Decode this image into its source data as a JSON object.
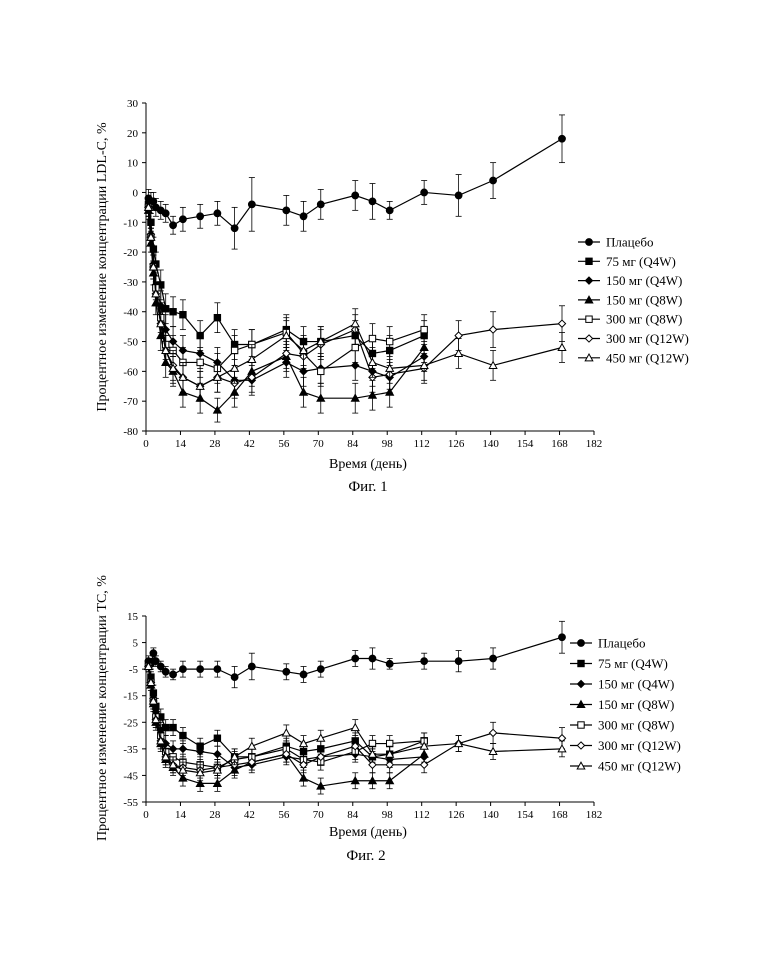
{
  "figures": [
    {
      "caption": "Фиг. 1",
      "chart_data": {
        "type": "line",
        "xlabel": "Время (день)",
        "ylabel": "Процентное изменение концентрации LDL-C, %",
        "xlim": [
          0,
          182
        ],
        "ylim": [
          -80,
          30
        ],
        "xticks": [
          0,
          14,
          28,
          42,
          56,
          70,
          84,
          98,
          112,
          126,
          140,
          154,
          168,
          182
        ],
        "yticks": [
          -80,
          -70,
          -60,
          -50,
          -40,
          -30,
          -20,
          -10,
          0,
          10,
          20,
          30
        ],
        "legend_position": "right",
        "series": [
          {
            "name": "Плацебо",
            "marker": "circle-filled",
            "x": [
              1,
              2,
              3,
              4,
              6,
              8,
              11,
              15,
              22,
              29,
              36,
              43,
              57,
              64,
              71,
              85,
              92,
              99,
              113,
              127,
              141,
              169
            ],
            "y": [
              -2,
              -3,
              -3,
              -5,
              -6,
              -7,
              -11,
              -9,
              -8,
              -7,
              -12,
              -4,
              -6,
              -8,
              -4,
              -1,
              -3,
              -6,
              0,
              -1,
              4,
              18
            ],
            "err": [
              3,
              3,
              3,
              3,
              3,
              3,
              3,
              4,
              4,
              4,
              7,
              9,
              5,
              5,
              5,
              5,
              6,
              3,
              4,
              7,
              6,
              8
            ]
          },
          {
            "name": "75 мг (Q4W)",
            "marker": "square-filled",
            "x": [
              1,
              2,
              3,
              4,
              6,
              8,
              11,
              15,
              22,
              29,
              36,
              43,
              57,
              64,
              71,
              85,
              92,
              99,
              113
            ],
            "y": [
              -4,
              -10,
              -19,
              -24,
              -31,
              -39,
              -40,
              -41,
              -48,
              -42,
              -51,
              -51,
              -46,
              -50,
              -50,
              -48,
              -54,
              -53,
              -48
            ],
            "err": [
              3,
              3,
              4,
              4,
              5,
              5,
              5,
              5,
              5,
              5,
              5,
              5,
              5,
              5,
              5,
              5,
              5,
              5,
              5
            ]
          },
          {
            "name": "150 мг (Q4W)",
            "marker": "diamond-filled",
            "x": [
              1,
              2,
              3,
              4,
              6,
              8,
              11,
              15,
              22,
              29,
              36,
              43,
              57,
              64,
              71,
              85,
              92,
              99,
              113
            ],
            "y": [
              -5,
              -14,
              -24,
              -31,
              -38,
              -46,
              -50,
              -53,
              -54,
              -57,
              -63,
              -63,
              -57,
              -60,
              -59,
              -58,
              -60,
              -62,
              -55
            ],
            "err": [
              3,
              3,
              4,
              4,
              5,
              5,
              5,
              5,
              5,
              5,
              5,
              5,
              5,
              5,
              5,
              5,
              5,
              5,
              5
            ]
          },
          {
            "name": "150 мг (Q8W)",
            "marker": "triangle-filled",
            "x": [
              1,
              2,
              3,
              4,
              6,
              8,
              11,
              15,
              22,
              29,
              36,
              43,
              57,
              64,
              71,
              85,
              92,
              99,
              113
            ],
            "y": [
              -6,
              -17,
              -27,
              -37,
              -48,
              -57,
              -60,
              -67,
              -69,
              -73,
              -67,
              -60,
              -55,
              -67,
              -69,
              -69,
              -68,
              -67,
              -52
            ],
            "err": [
              3,
              3,
              4,
              4,
              5,
              5,
              5,
              5,
              5,
              4,
              5,
              5,
              5,
              5,
              5,
              5,
              5,
              5,
              5
            ]
          },
          {
            "name": "300 мг (Q8W)",
            "marker": "square-open",
            "x": [
              1,
              2,
              3,
              4,
              6,
              8,
              11,
              15,
              22,
              29,
              36,
              43,
              57,
              64,
              71,
              85,
              92,
              99,
              113
            ],
            "y": [
              -5,
              -15,
              -25,
              -32,
              -42,
              -51,
              -53,
              -57,
              -57,
              -59,
              -53,
              -51,
              -47,
              -54,
              -60,
              -52,
              -49,
              -50,
              -46
            ],
            "err": [
              3,
              3,
              4,
              4,
              5,
              5,
              5,
              5,
              5,
              5,
              5,
              5,
              5,
              5,
              5,
              5,
              5,
              5,
              5
            ]
          },
          {
            "name": "300 мг (Q12W)",
            "marker": "diamond-open",
            "x": [
              1,
              2,
              3,
              4,
              6,
              8,
              11,
              15,
              22,
              29,
              36,
              43,
              57,
              64,
              71,
              85,
              92,
              99,
              113,
              127,
              141,
              169
            ],
            "y": [
              -5,
              -15,
              -25,
              -34,
              -44,
              -53,
              -58,
              -62,
              -65,
              -62,
              -64,
              -62,
              -54,
              -55,
              -51,
              -46,
              -62,
              -61,
              -59,
              -48,
              -46,
              -44
            ],
            "err": [
              3,
              3,
              4,
              4,
              5,
              5,
              5,
              5,
              5,
              5,
              5,
              5,
              5,
              5,
              5,
              5,
              5,
              5,
              5,
              5,
              6,
              6
            ]
          },
          {
            "name": "450 мг (Q12W)",
            "marker": "triangle-open",
            "x": [
              1,
              2,
              3,
              4,
              6,
              8,
              11,
              15,
              22,
              29,
              36,
              43,
              57,
              64,
              71,
              85,
              92,
              99,
              113,
              127,
              141,
              169
            ],
            "y": [
              -5,
              -15,
              -25,
              -34,
              -44,
              -53,
              -59,
              -62,
              -65,
              -62,
              -59,
              -56,
              -48,
              -53,
              -50,
              -44,
              -57,
              -59,
              -58,
              -54,
              -58,
              -52
            ],
            "err": [
              3,
              3,
              4,
              4,
              5,
              5,
              5,
              5,
              5,
              5,
              5,
              5,
              5,
              5,
              5,
              5,
              5,
              5,
              5,
              5,
              5,
              5
            ]
          }
        ]
      }
    },
    {
      "caption": "Фиг. 2",
      "chart_data": {
        "type": "line",
        "xlabel": "Время (день)",
        "ylabel": "Процентное изменение концентрации ТС, %",
        "xlim": [
          0,
          182
        ],
        "ylim": [
          -55,
          15
        ],
        "xticks": [
          0,
          14,
          28,
          42,
          56,
          70,
          84,
          98,
          112,
          126,
          140,
          154,
          168,
          182
        ],
        "yticks": [
          -55,
          -45,
          -35,
          -25,
          -15,
          -5,
          5,
          15
        ],
        "legend_position": "right",
        "series": [
          {
            "name": "Плацебо",
            "marker": "circle-filled",
            "x": [
              1,
              2,
              3,
              4,
              6,
              8,
              11,
              15,
              22,
              29,
              36,
              43,
              57,
              64,
              71,
              85,
              92,
              99,
              113,
              127,
              141,
              169
            ],
            "y": [
              -2,
              -3,
              1,
              -2,
              -4,
              -6,
              -7,
              -5,
              -5,
              -5,
              -8,
              -4,
              -6,
              -7,
              -5,
              -1,
              -1,
              -3,
              -2,
              -2,
              -1,
              7
            ],
            "err": [
              2,
              2,
              2,
              2,
              2,
              2,
              2,
              3,
              3,
              3,
              4,
              5,
              3,
              3,
              3,
              3,
              4,
              2,
              3,
              4,
              4,
              6
            ]
          },
          {
            "name": "75 мг (Q4W)",
            "marker": "square-filled",
            "x": [
              1,
              2,
              3,
              4,
              6,
              8,
              11,
              15,
              22,
              29,
              36,
              43,
              57,
              64,
              71,
              85,
              92,
              99,
              113
            ],
            "y": [
              -3,
              -8,
              -14,
              -19,
              -23,
              -27,
              -27,
              -30,
              -34,
              -31,
              -38,
              -38,
              -34,
              -36,
              -35,
              -32,
              -38,
              -37,
              -32
            ],
            "err": [
              2,
              2,
              3,
              3,
              3,
              3,
              3,
              3,
              3,
              3,
              3,
              3,
              3,
              3,
              3,
              3,
              3,
              3,
              3
            ]
          },
          {
            "name": "150 мг (Q4W)",
            "marker": "diamond-filled",
            "x": [
              1,
              2,
              3,
              4,
              6,
              8,
              11,
              15,
              22,
              29,
              36,
              43,
              57,
              64,
              71,
              85,
              92,
              99,
              113
            ],
            "y": [
              -4,
              -10,
              -16,
              -21,
              -28,
              -33,
              -35,
              -35,
              -36,
              -37,
              -42,
              -41,
              -38,
              -39,
              -38,
              -37,
              -38,
              -39,
              -38
            ],
            "err": [
              2,
              2,
              3,
              3,
              3,
              3,
              3,
              3,
              3,
              3,
              3,
              3,
              3,
              3,
              3,
              3,
              3,
              3,
              3
            ]
          },
          {
            "name": "150 мг (Q8W)",
            "marker": "triangle-filled",
            "x": [
              1,
              2,
              3,
              4,
              6,
              8,
              11,
              15,
              22,
              29,
              36,
              43,
              57,
              64,
              71,
              85,
              92,
              99,
              113
            ],
            "y": [
              -4,
              -11,
              -18,
              -25,
              -33,
              -39,
              -42,
              -46,
              -48,
              -48,
              -43,
              -40,
              -37,
              -46,
              -49,
              -47,
              -47,
              -47,
              -37
            ],
            "err": [
              2,
              2,
              3,
              3,
              3,
              3,
              3,
              3,
              3,
              3,
              3,
              3,
              3,
              3,
              3,
              3,
              3,
              3,
              3
            ]
          },
          {
            "name": "300 мг (Q8W)",
            "marker": "square-open",
            "x": [
              1,
              2,
              3,
              4,
              6,
              8,
              11,
              15,
              22,
              29,
              36,
              43,
              57,
              64,
              71,
              85,
              92,
              99,
              113
            ],
            "y": [
              -4,
              -10,
              -17,
              -23,
              -30,
              -36,
              -38,
              -40,
              -41,
              -42,
              -39,
              -38,
              -35,
              -39,
              -40,
              -36,
              -33,
              -33,
              -32
            ],
            "err": [
              2,
              2,
              3,
              3,
              3,
              3,
              3,
              3,
              3,
              3,
              3,
              3,
              3,
              3,
              3,
              3,
              3,
              3,
              3
            ]
          },
          {
            "name": "300 мг (Q12W)",
            "marker": "diamond-open",
            "x": [
              1,
              2,
              3,
              4,
              6,
              8,
              11,
              15,
              22,
              29,
              36,
              43,
              57,
              64,
              71,
              85,
              92,
              99,
              113,
              127,
              141,
              169
            ],
            "y": [
              -4,
              -10,
              -17,
              -24,
              -32,
              -38,
              -41,
              -42,
              -43,
              -42,
              -41,
              -40,
              -37,
              -41,
              -38,
              -34,
              -41,
              -41,
              -41,
              -33,
              -29,
              -31
            ],
            "err": [
              2,
              2,
              3,
              3,
              3,
              3,
              3,
              3,
              3,
              3,
              3,
              3,
              3,
              3,
              3,
              3,
              3,
              3,
              3,
              3,
              4,
              4
            ]
          },
          {
            "name": "450 мг (Q12W)",
            "marker": "triangle-open",
            "x": [
              1,
              2,
              3,
              4,
              6,
              8,
              11,
              15,
              22,
              29,
              36,
              43,
              57,
              64,
              71,
              85,
              92,
              99,
              113,
              127,
              141,
              169
            ],
            "y": [
              -4,
              -10,
              -17,
              -24,
              -32,
              -38,
              -41,
              -43,
              -44,
              -43,
              -38,
              -34,
              -29,
              -33,
              -31,
              -27,
              -37,
              -37,
              -34,
              -33,
              -36,
              -35
            ],
            "err": [
              2,
              2,
              3,
              3,
              3,
              3,
              3,
              3,
              3,
              3,
              3,
              3,
              3,
              3,
              3,
              3,
              3,
              3,
              3,
              3,
              3,
              3
            ]
          }
        ]
      }
    }
  ]
}
